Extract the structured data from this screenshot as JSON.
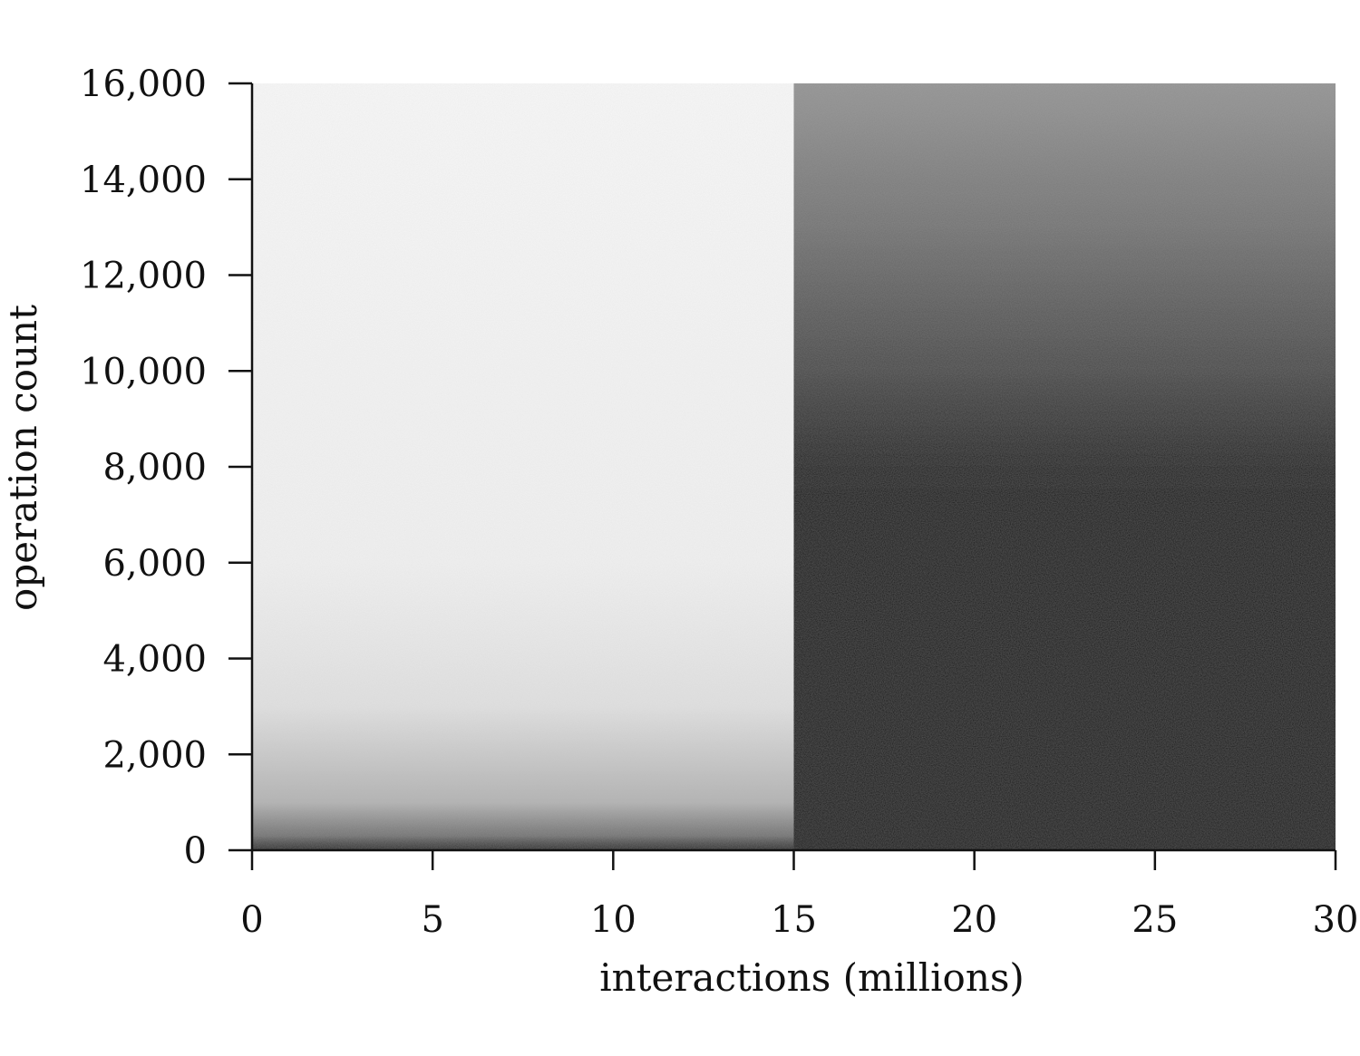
{
  "chart_data": {
    "type": "heatmap",
    "title": "",
    "xlabel": "interactions (millions)",
    "ylabel": "operation count",
    "xlim": [
      0,
      30
    ],
    "ylim": [
      0,
      16000
    ],
    "x_ticks": [
      0,
      5,
      10,
      15,
      20,
      25,
      30
    ],
    "x_tick_labels": [
      "0",
      "5",
      "10",
      "15",
      "20",
      "25",
      "30"
    ],
    "y_ticks": [
      0,
      2000,
      4000,
      6000,
      8000,
      10000,
      12000,
      14000,
      16000
    ],
    "y_tick_labels": [
      "0",
      "2,000",
      "4,000",
      "6,000",
      "8,000",
      "10,000",
      "12,000",
      "14,000",
      "16,000"
    ],
    "grid": false,
    "colormap": "grayscale (light = low, dark = high)",
    "regions": [
      {
        "x_range": [
          0,
          15
        ],
        "y_range": [
          0,
          16000
        ],
        "shade_profile": [
          [
            0,
            0.85
          ],
          [
            300,
            0.55
          ],
          [
            1000,
            0.3
          ],
          [
            3000,
            0.12
          ],
          [
            6000,
            0.06
          ],
          [
            16000,
            0.03
          ]
        ]
      },
      {
        "x_range": [
          15,
          30
        ],
        "y_range": [
          0,
          16000
        ],
        "shade_profile": [
          [
            0,
            1.0
          ],
          [
            6500,
            1.0
          ],
          [
            8000,
            0.9
          ],
          [
            10000,
            0.72
          ],
          [
            13000,
            0.55
          ],
          [
            16000,
            0.42
          ]
        ]
      }
    ],
    "colors": {
      "low": "#ffffff",
      "high": "#000000",
      "axis": "#111111"
    }
  }
}
